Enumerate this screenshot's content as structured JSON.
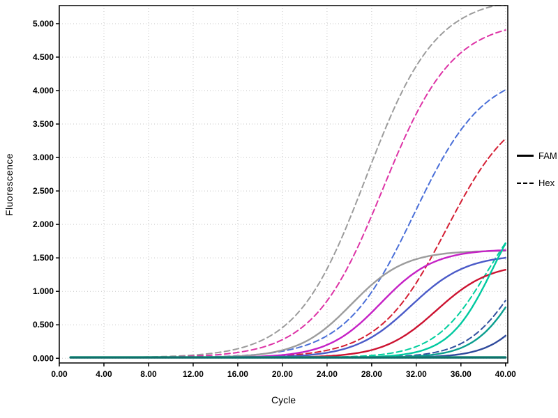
{
  "chart_data": {
    "type": "line",
    "title": "",
    "xlabel": "Cycle",
    "ylabel": "Fluorescence",
    "xlim": [
      0,
      40.2
    ],
    "ylim": [
      -0.07,
      5.27
    ],
    "grid": "dotted",
    "x_start": 1,
    "x_end": 40,
    "x_ticks": [
      0,
      4,
      8,
      12,
      16,
      20,
      24,
      28,
      32,
      36,
      40
    ],
    "x_tick_labels": [
      "0.00",
      "4.00",
      "8.00",
      "12.00",
      "16.00",
      "20.00",
      "24.00",
      "28.00",
      "32.00",
      "36.00",
      "40.00"
    ],
    "y_ticks": [
      0,
      0.5,
      1.0,
      1.5,
      2.0,
      2.5,
      3.0,
      3.5,
      4.0,
      4.5,
      5.0
    ],
    "y_tick_labels": [
      "0.000",
      "0.500",
      "1.000",
      "1.500",
      "2.000",
      "2.500",
      "3.000",
      "3.500",
      "4.000",
      "4.500",
      "5.000"
    ],
    "legend": {
      "position": "right",
      "entries": [
        {
          "label": "FAM",
          "style": "solid"
        },
        {
          "label": "Hex",
          "style": "dashed"
        }
      ]
    },
    "series": [
      {
        "name": "hex-gray",
        "channel": "Hex",
        "style": "dashed",
        "color": "#9c9c9c",
        "model": "sigmoid",
        "baseline": 0.01,
        "plateau": 5.4,
        "midpoint": 27.5,
        "slope": 0.32,
        "liftoff_cycle": 18,
        "y_at_40": 5.25
      },
      {
        "name": "hex-magenta",
        "channel": "Hex",
        "style": "dashed",
        "color": "#dd33a6",
        "model": "sigmoid",
        "baseline": 0.01,
        "plateau": 5.05,
        "midpoint": 29.0,
        "slope": 0.32,
        "liftoff_cycle": 20,
        "y_at_40": 4.9
      },
      {
        "name": "hex-blue",
        "channel": "Hex",
        "style": "dashed",
        "color": "#4a6fd8",
        "model": "sigmoid",
        "baseline": 0.01,
        "plateau": 4.3,
        "midpoint": 31.8,
        "slope": 0.32,
        "liftoff_cycle": 23,
        "y_at_40": 4.0
      },
      {
        "name": "hex-red",
        "channel": "Hex",
        "style": "dashed",
        "color": "#d41e33",
        "model": "sigmoid",
        "baseline": 0.01,
        "plateau": 3.85,
        "midpoint": 34.7,
        "slope": 0.33,
        "liftoff_cycle": 26,
        "y_at_40": 3.27
      },
      {
        "name": "hex-teal",
        "channel": "Hex",
        "style": "dashed",
        "color": "#00cf9e",
        "model": "sigmoid",
        "baseline": 0.01,
        "plateau": 2.6,
        "midpoint": 38.4,
        "slope": 0.42,
        "liftoff_cycle": 32.5,
        "y_at_40": 1.73
      },
      {
        "name": "hex-navy",
        "channel": "Hex",
        "style": "dashed",
        "color": "#31509e",
        "model": "sigmoid",
        "baseline": 0.01,
        "plateau": 2.2,
        "midpoint": 41.0,
        "slope": 0.45,
        "liftoff_cycle": 34.5,
        "y_at_40": 0.86
      },
      {
        "name": "fam-gray",
        "channel": "FAM",
        "style": "solid",
        "color": "#9c9c9c",
        "model": "sigmoid",
        "baseline": 0.01,
        "plateau": 1.61,
        "midpoint": 26.2,
        "slope": 0.42,
        "liftoff_cycle": 20.5,
        "y_at_40": 1.6
      },
      {
        "name": "fam-magenta",
        "channel": "FAM",
        "style": "solid",
        "color": "#c521c5",
        "model": "sigmoid",
        "baseline": 0.01,
        "plateau": 1.63,
        "midpoint": 28.8,
        "slope": 0.42,
        "liftoff_cycle": 23,
        "y_at_40": 1.62
      },
      {
        "name": "fam-blue",
        "channel": "FAM",
        "style": "solid",
        "color": "#4a5ac8",
        "model": "sigmoid",
        "baseline": 0.01,
        "plateau": 1.55,
        "midpoint": 31.5,
        "slope": 0.4,
        "liftoff_cycle": 26,
        "y_at_40": 1.5
      },
      {
        "name": "fam-red",
        "channel": "FAM",
        "style": "solid",
        "color": "#cc1230",
        "model": "sigmoid",
        "baseline": 0.01,
        "plateau": 1.42,
        "midpoint": 33.8,
        "slope": 0.42,
        "liftoff_cycle": 28,
        "y_at_40": 1.33
      },
      {
        "name": "fam-teal-high",
        "channel": "FAM",
        "style": "solid",
        "color": "#00c9a0",
        "model": "sigmoid",
        "baseline": 0.01,
        "plateau": 2.7,
        "midpoint": 38.9,
        "slope": 0.5,
        "liftoff_cycle": 35,
        "y_at_40": 1.7
      },
      {
        "name": "fam-teal-low",
        "channel": "FAM",
        "style": "solid",
        "color": "#0b9e8f",
        "model": "sigmoid",
        "baseline": 0.01,
        "plateau": 2.2,
        "midpoint": 41.3,
        "slope": 0.5,
        "liftoff_cycle": 36.5,
        "y_at_40": 0.74
      },
      {
        "name": "fam-navy",
        "channel": "FAM",
        "style": "solid",
        "color": "#2e4a9c",
        "model": "sigmoid",
        "baseline": 0.01,
        "plateau": 1.8,
        "midpoint": 43.0,
        "slope": 0.5,
        "liftoff_cycle": 37.5,
        "y_at_40": 0.33
      },
      {
        "name": "negative-green-flat",
        "channel": "Hex",
        "style": "solid",
        "color": "#2ad39a",
        "model": "flat",
        "value": 0.02,
        "y_at_40": 0.02
      },
      {
        "name": "negative-darkteal-flat",
        "channel": "FAM",
        "style": "solid",
        "color": "#0f6e6a",
        "model": "flat",
        "value": 0.012,
        "width": 3.2,
        "y_at_40": 0.01
      }
    ]
  }
}
